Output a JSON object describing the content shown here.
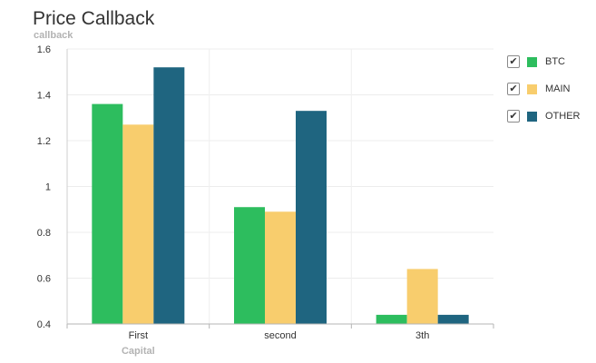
{
  "chart_data": {
    "type": "bar",
    "title": "Price Callback",
    "ylabel": "callback",
    "xlabel": "Capital",
    "categories": [
      "First",
      "second",
      "3th"
    ],
    "series": [
      {
        "name": "BTC",
        "color": "#2dbd5e",
        "values": [
          1.36,
          0.91,
          0.44
        ]
      },
      {
        "name": "MAIN",
        "color": "#f8cd6d",
        "values": [
          1.27,
          0.89,
          0.64
        ]
      },
      {
        "name": "OTHER",
        "color": "#1f6580",
        "values": [
          1.52,
          1.33,
          0.44
        ]
      }
    ],
    "ylim": [
      0.4,
      1.6
    ],
    "yticks": [
      "0.4",
      "0.6",
      "0.8",
      "1",
      "1.2",
      "1.4",
      "1.6"
    ],
    "grid": true,
    "legend_position": "right"
  },
  "legend": {
    "check_icon": "check-icon",
    "items": [
      {
        "label": "BTC",
        "checked": true
      },
      {
        "label": "MAIN",
        "checked": true
      },
      {
        "label": "OTHER",
        "checked": true
      }
    ]
  }
}
